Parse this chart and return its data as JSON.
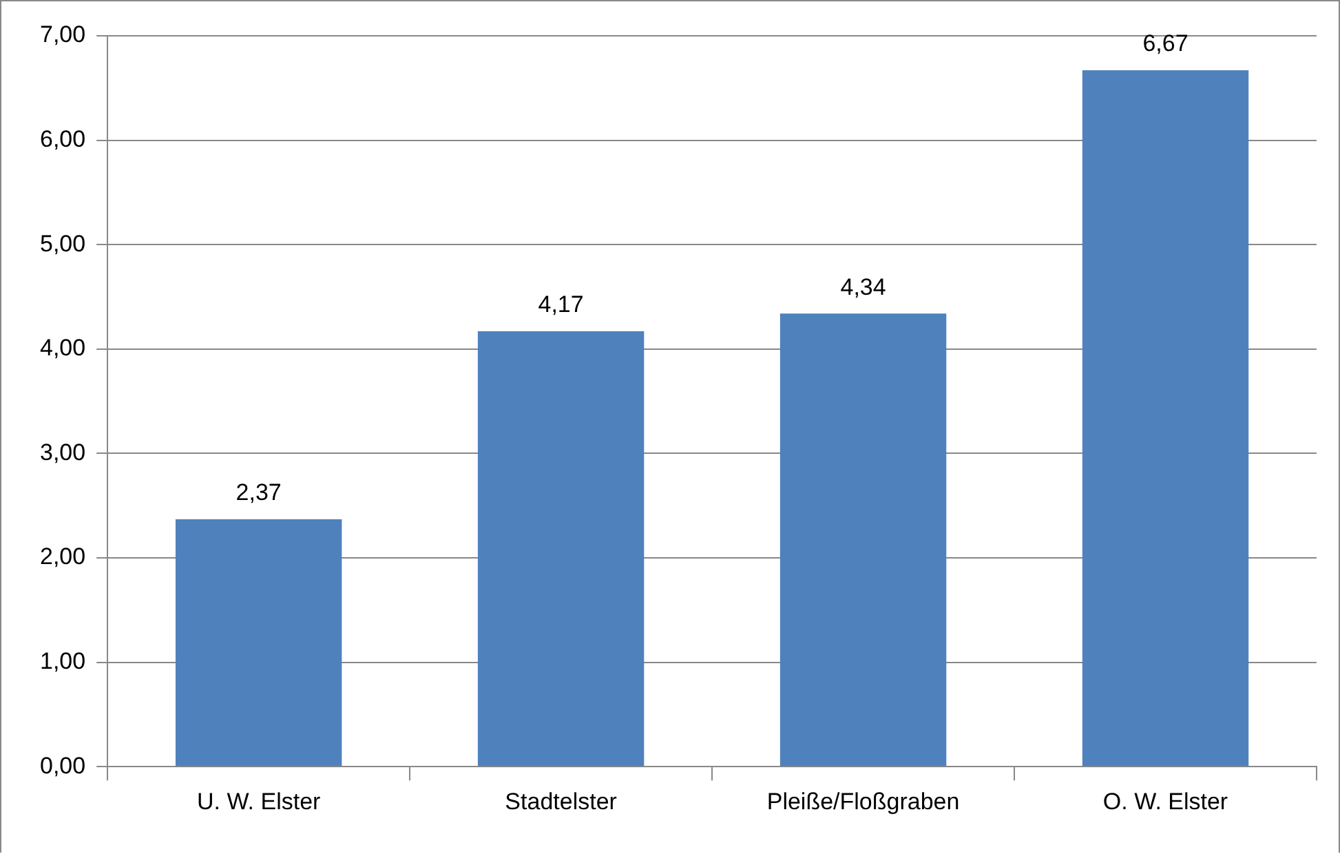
{
  "chart_data": {
    "type": "bar",
    "categories": [
      "U. W. Elster",
      "Stadtelster",
      "Pleiße/Floßgraben",
      "O. W. Elster"
    ],
    "values": [
      2.37,
      4.17,
      4.34,
      6.67
    ],
    "value_labels": [
      "2,37",
      "4,17",
      "4,34",
      "6,67"
    ],
    "color": "#4f81bd",
    "ylim": [
      0,
      7
    ],
    "yticks": [
      {
        "value": 0,
        "label": "0,00"
      },
      {
        "value": 1,
        "label": "1,00"
      },
      {
        "value": 2,
        "label": "2,00"
      },
      {
        "value": 3,
        "label": "3,00"
      },
      {
        "value": 4,
        "label": "4,00"
      },
      {
        "value": 5,
        "label": "5,00"
      },
      {
        "value": 6,
        "label": "6,00"
      },
      {
        "value": 7,
        "label": "7,00"
      }
    ],
    "grid": "y",
    "legend": false
  }
}
